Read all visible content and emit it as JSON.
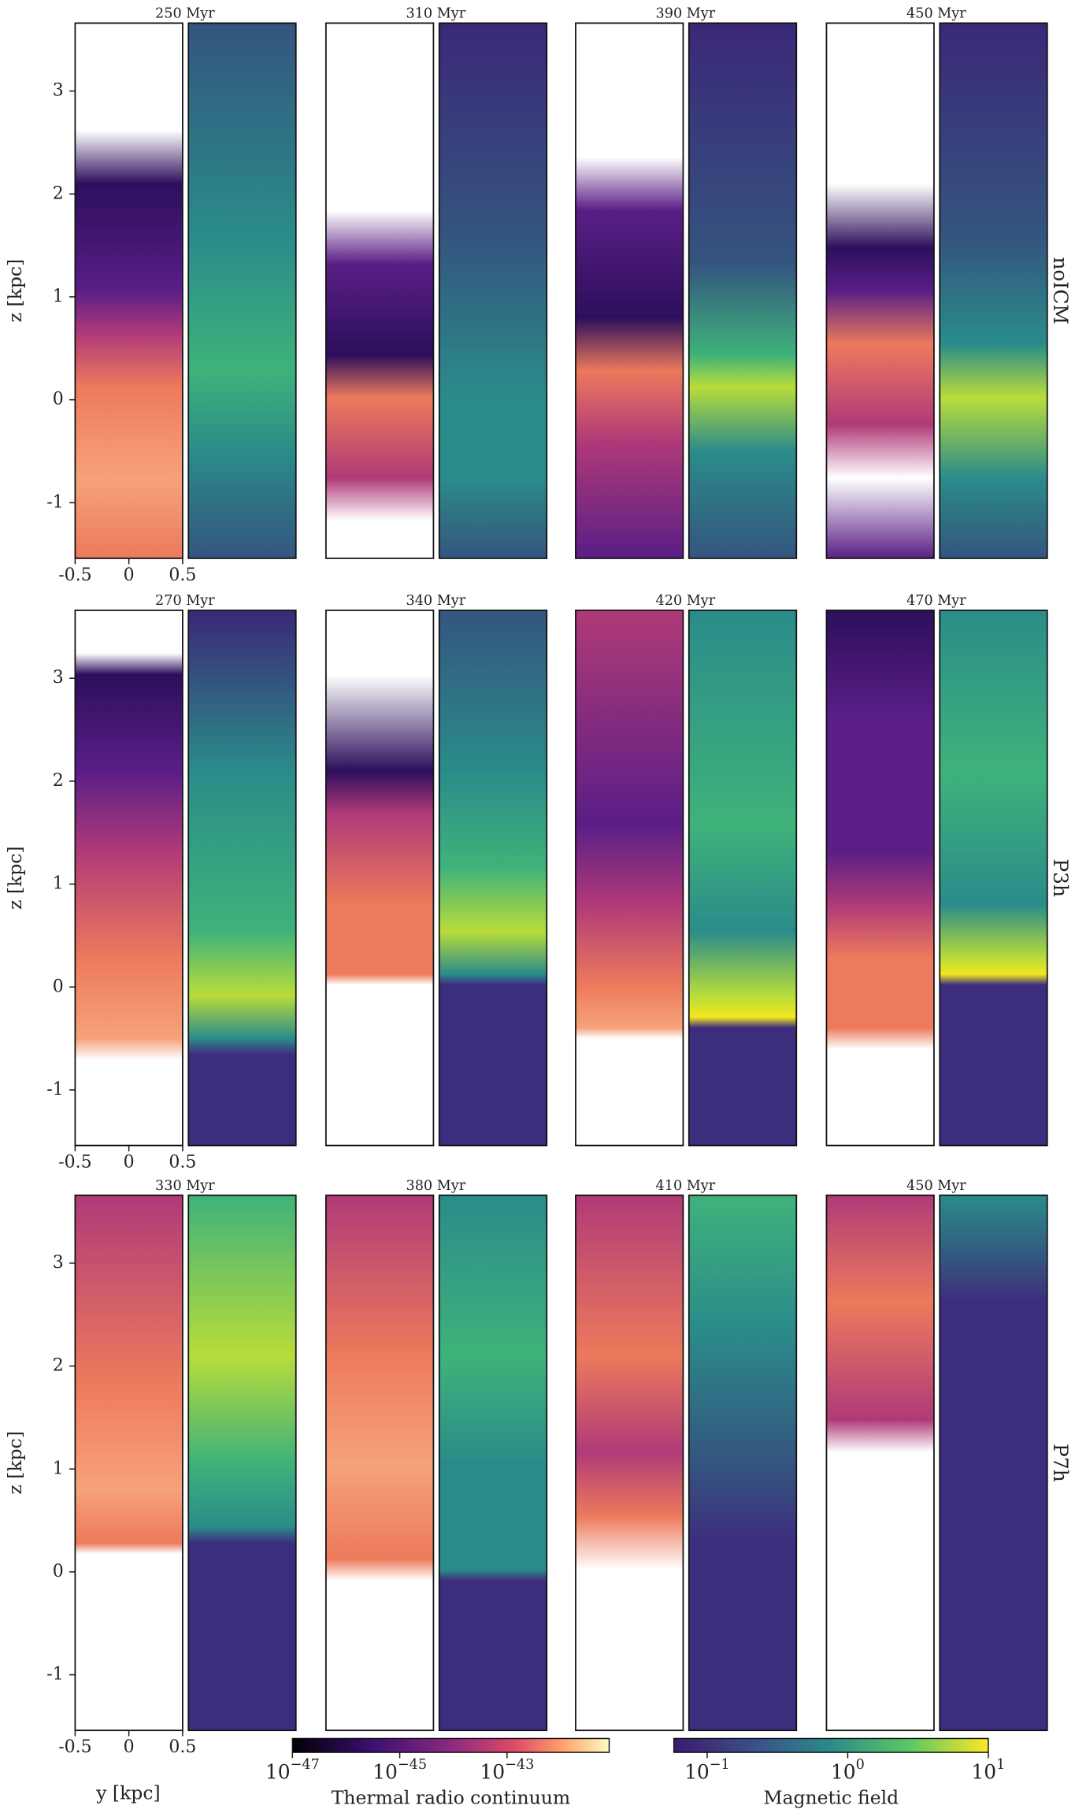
{
  "chart_data": {
    "type": "panel-grid",
    "xlabel": "y [kpc]",
    "ylabel": "z [kpc]",
    "xlim": [
      -0.5,
      0.5
    ],
    "xticks": [
      -0.5,
      0,
      0.5
    ],
    "ylim": [
      -1.54,
      3.66
    ],
    "yticks": [
      -1,
      0,
      1,
      2,
      3
    ],
    "rows": [
      {
        "label": "noICM",
        "times": [
          "250 Myr",
          "310 Myr",
          "390 Myr",
          "450 Myr"
        ]
      },
      {
        "label": "P3h",
        "times": [
          "270 Myr",
          "340 Myr",
          "420 Myr",
          "470 Myr"
        ]
      },
      {
        "label": "P7h",
        "times": [
          "330 Myr",
          "380 Myr",
          "410 Myr",
          "450 Myr"
        ]
      }
    ],
    "colorbars": [
      {
        "label": "Thermal radio continuum",
        "log": true,
        "lim": [
          1e-47,
          8e-42
        ],
        "ticks": [
          {
            "value": 1e-47,
            "base": "10",
            "exponent": "−47"
          },
          {
            "value": 1e-45,
            "base": "10",
            "exponent": "−45"
          },
          {
            "value": 1e-43,
            "base": "10",
            "exponent": "−43"
          }
        ]
      },
      {
        "label": "Magnetic field",
        "log": true,
        "lim": [
          0.058,
          10
        ],
        "ticks": [
          {
            "value": 0.1,
            "base": "10",
            "exponent": "−1"
          },
          {
            "value": 1,
            "base": "10",
            "exponent": "0"
          },
          {
            "value": 10,
            "base": "10",
            "exponent": "1"
          }
        ]
      }
    ]
  }
}
